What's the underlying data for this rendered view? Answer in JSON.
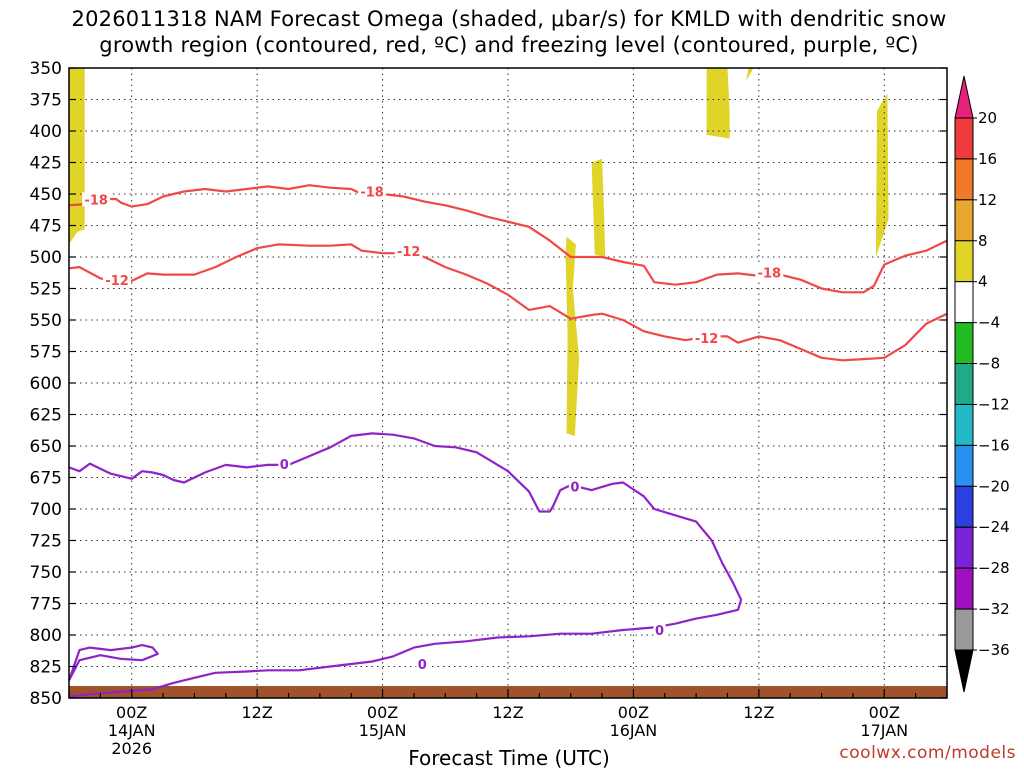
{
  "title_line1": "2026011318 NAM Forecast Omega (shaded, μbar/s) for KMLD with dendritic snow",
  "title_line2": "growth region (contoured, red, ºC) and freezing level (contoured, purple, ºC)",
  "xaxis_title": "Forecast Time (UTC)",
  "credit": "coolwx.com/models",
  "chart_data": {
    "type": "line",
    "title": "2026011318 NAM Forecast Omega (shaded, μbar/s) for KMLD with dendritic snow growth region (contoured, red, ºC) and freezing level (contoured, purple, ºC)",
    "xlabel": "Forecast Time (UTC)",
    "ylabel": "",
    "x_unit": "forecast hour",
    "xlim": [
      0,
      84
    ],
    "ylim": [
      350,
      850
    ],
    "y_inverted": true,
    "grid": true,
    "y_ticks": [
      350,
      375,
      400,
      425,
      450,
      475,
      500,
      525,
      550,
      575,
      600,
      625,
      650,
      675,
      700,
      725,
      750,
      775,
      800,
      825,
      850
    ],
    "x_ticks": [
      {
        "hour": 6,
        "lines": [
          "00Z",
          "14JAN",
          "2026"
        ]
      },
      {
        "hour": 18,
        "lines": [
          "12Z"
        ]
      },
      {
        "hour": 30,
        "lines": [
          "00Z",
          "15JAN"
        ]
      },
      {
        "hour": 42,
        "lines": [
          "12Z"
        ]
      },
      {
        "hour": 54,
        "lines": [
          "00Z",
          "16JAN"
        ]
      },
      {
        "hour": 66,
        "lines": [
          "12Z"
        ]
      },
      {
        "hour": 78,
        "lines": [
          "00Z",
          "17JAN"
        ]
      }
    ],
    "colorbar": {
      "labels": [
        "20",
        "16",
        "12",
        "8",
        "4",
        "−4",
        "−8",
        "−12",
        "−16",
        "−20",
        "−24",
        "−28",
        "−32",
        "−36"
      ],
      "colors": [
        "#e8207e",
        "#f03c3c",
        "#f07a28",
        "#e8a830",
        "#e0d428",
        "#ffffff",
        "#22bb22",
        "#22aa88",
        "#22b8c8",
        "#2a90f0",
        "#2a40e0",
        "#7a22d8",
        "#a010c0",
        "#9a9a9a",
        "#000000"
      ]
    },
    "series": [
      {
        "name": "-18",
        "color": "#f04848",
        "points": [
          [
            0,
            459
          ],
          [
            1.5,
            458
          ],
          [
            3,
            454
          ],
          [
            4.5,
            454
          ],
          [
            5,
            457
          ],
          [
            6,
            460
          ],
          [
            7.5,
            458
          ],
          [
            9,
            452
          ],
          [
            11,
            448
          ],
          [
            13,
            446
          ],
          [
            15,
            448
          ],
          [
            17,
            446
          ],
          [
            19,
            444
          ],
          [
            21,
            446
          ],
          [
            23,
            443
          ],
          [
            25,
            445
          ],
          [
            27,
            446
          ],
          [
            28,
            450
          ],
          [
            30,
            450
          ],
          [
            32,
            452
          ],
          [
            34,
            456
          ],
          [
            36,
            459
          ],
          [
            38,
            463
          ],
          [
            40,
            468
          ],
          [
            42,
            472
          ],
          [
            44,
            476
          ],
          [
            46,
            487
          ],
          [
            48,
            500
          ],
          [
            51,
            500
          ],
          [
            53,
            504
          ],
          [
            55,
            507
          ],
          [
            56,
            520
          ],
          [
            58,
            522
          ],
          [
            60,
            520
          ],
          [
            62,
            514
          ],
          [
            64,
            513
          ],
          [
            66,
            515
          ],
          [
            68,
            514
          ],
          [
            70,
            518
          ],
          [
            72,
            525
          ],
          [
            74,
            528
          ],
          [
            76,
            528
          ],
          [
            77,
            523
          ],
          [
            78,
            506
          ],
          [
            80,
            499
          ],
          [
            82,
            495
          ],
          [
            84,
            487
          ]
        ]
      },
      {
        "name": "-12",
        "color": "#f04848",
        "points": [
          [
            0,
            509
          ],
          [
            1,
            508
          ],
          [
            3,
            517
          ],
          [
            5,
            520
          ],
          [
            6,
            519
          ],
          [
            7.5,
            513
          ],
          [
            9,
            514
          ],
          [
            12,
            514
          ],
          [
            14,
            508
          ],
          [
            16,
            500
          ],
          [
            18,
            493
          ],
          [
            20,
            490
          ],
          [
            23,
            491
          ],
          [
            25,
            491
          ],
          [
            27,
            490
          ],
          [
            28,
            495
          ],
          [
            30,
            497
          ],
          [
            32,
            497
          ],
          [
            34,
            500
          ],
          [
            36,
            508
          ],
          [
            38,
            514
          ],
          [
            40,
            521
          ],
          [
            42,
            530
          ],
          [
            44,
            542
          ],
          [
            46,
            539
          ],
          [
            48,
            549
          ],
          [
            50,
            546
          ],
          [
            51,
            545
          ],
          [
            53,
            550
          ],
          [
            55,
            559
          ],
          [
            57,
            563
          ],
          [
            59,
            566
          ],
          [
            61,
            563
          ],
          [
            63,
            563
          ],
          [
            64,
            568
          ],
          [
            66,
            563
          ],
          [
            68,
            566
          ],
          [
            70,
            573
          ],
          [
            72,
            580
          ],
          [
            74,
            582
          ],
          [
            76,
            581
          ],
          [
            78,
            580
          ],
          [
            80,
            570
          ],
          [
            82,
            553
          ],
          [
            84,
            545
          ]
        ]
      },
      {
        "name": "0",
        "color": "#8e24c8",
        "points": [
          [
            0,
            667
          ],
          [
            1,
            670
          ],
          [
            2,
            664
          ],
          [
            3,
            668
          ],
          [
            4,
            672
          ],
          [
            5,
            674
          ],
          [
            6,
            676
          ],
          [
            7,
            670
          ],
          [
            8,
            671
          ],
          [
            9,
            673
          ],
          [
            10,
            677
          ],
          [
            11,
            679
          ],
          [
            13,
            671
          ],
          [
            15,
            665
          ],
          [
            17,
            667
          ],
          [
            19,
            665
          ],
          [
            21,
            665
          ],
          [
            23,
            658
          ],
          [
            25,
            651
          ],
          [
            27,
            642
          ],
          [
            29,
            640
          ],
          [
            31,
            641
          ],
          [
            33,
            644
          ],
          [
            35,
            650
          ],
          [
            37,
            651
          ],
          [
            39,
            655
          ],
          [
            40,
            660
          ],
          [
            42,
            670
          ],
          [
            44,
            686
          ],
          [
            45,
            702
          ],
          [
            46,
            702
          ],
          [
            46.3,
            698
          ],
          [
            47,
            685
          ],
          [
            48,
            681
          ],
          [
            50,
            685
          ],
          [
            52,
            680
          ],
          [
            53,
            679
          ],
          [
            55,
            690
          ],
          [
            56,
            700
          ],
          [
            58,
            705
          ],
          [
            60,
            710
          ],
          [
            61.5,
            725
          ],
          [
            62.5,
            743
          ],
          [
            63.5,
            758
          ],
          [
            64.3,
            772
          ],
          [
            64,
            780
          ],
          [
            62,
            784
          ],
          [
            60,
            787
          ],
          [
            58,
            791
          ],
          [
            56,
            794
          ],
          [
            53,
            796
          ],
          [
            50,
            799
          ],
          [
            47,
            799
          ],
          [
            44,
            801
          ],
          [
            41,
            802
          ],
          [
            38,
            805
          ],
          [
            35,
            807
          ],
          [
            33,
            810
          ],
          [
            31,
            817
          ],
          [
            29,
            821
          ],
          [
            27,
            823
          ],
          [
            25,
            825
          ],
          [
            22,
            828
          ],
          [
            19,
            828
          ],
          [
            17,
            829
          ],
          [
            14,
            830
          ],
          [
            12,
            834
          ],
          [
            10,
            838
          ],
          [
            8,
            843
          ],
          [
            5,
            845
          ],
          [
            2,
            847
          ],
          [
            0,
            849
          ]
        ]
      },
      {
        "name": "0 (low-level)",
        "color": "#8e24c8",
        "points": [
          [
            0,
            836
          ],
          [
            1,
            812
          ],
          [
            2,
            810
          ],
          [
            4,
            812
          ],
          [
            6,
            810
          ],
          [
            7,
            808
          ],
          [
            8,
            810
          ],
          [
            8.5,
            815
          ],
          [
            7,
            820
          ],
          [
            5,
            819
          ],
          [
            3,
            816
          ],
          [
            1,
            820
          ],
          [
            0,
            836
          ]
        ]
      }
    ],
    "shaded_regions": [
      {
        "name": "omega 4-8 (yellow)",
        "color": "#e0d428",
        "polygon": [
          [
            0,
            350
          ],
          [
            1.5,
            350
          ],
          [
            1.5,
            478
          ],
          [
            0.8,
            480
          ],
          [
            0,
            490
          ]
        ]
      },
      {
        "name": "omega 4-8 (yellow)",
        "color": "#e0d428",
        "polygon": [
          [
            47.6,
            484
          ],
          [
            48.5,
            490
          ],
          [
            48.2,
            525
          ],
          [
            48.8,
            580
          ],
          [
            48.4,
            642
          ],
          [
            47.6,
            640
          ],
          [
            47.7,
            560
          ],
          [
            47.5,
            500
          ]
        ]
      },
      {
        "name": "omega 4-8 (yellow)",
        "color": "#e0d428",
        "polygon": [
          [
            50,
            425
          ],
          [
            51,
            422
          ],
          [
            51.2,
            470
          ],
          [
            51.3,
            500
          ],
          [
            50.3,
            498
          ]
        ]
      },
      {
        "name": "omega 4-8 (yellow)",
        "color": "#e0d428",
        "polygon": [
          [
            61,
            350
          ],
          [
            63,
            350
          ],
          [
            63.2,
            384
          ],
          [
            63.2,
            406
          ],
          [
            61,
            403
          ]
        ]
      },
      {
        "name": "omega 4-8 (yellow)",
        "color": "#e0d428",
        "polygon": [
          [
            65,
            350
          ],
          [
            65.5,
            350
          ],
          [
            64.8,
            360
          ]
        ]
      },
      {
        "name": "omega 4-8 (yellow)",
        "color": "#e0d428",
        "polygon": [
          [
            77.3,
            384
          ],
          [
            78.3,
            370
          ],
          [
            78.4,
            470
          ],
          [
            77.2,
            500
          ]
        ]
      }
    ],
    "contour_labels": [
      {
        "text": "-18",
        "x": 2.6,
        "y": 455,
        "color": "#f04848"
      },
      {
        "text": "-18",
        "x": 29,
        "y": 449,
        "color": "#f04848"
      },
      {
        "text": "-18",
        "x": 67,
        "y": 513,
        "color": "#f04848"
      },
      {
        "text": "-12",
        "x": 4.6,
        "y": 519,
        "color": "#f04848"
      },
      {
        "text": "-12",
        "x": 32.5,
        "y": 496,
        "color": "#f04848"
      },
      {
        "text": "-12",
        "x": 61,
        "y": 565,
        "color": "#f04848"
      },
      {
        "text": "0",
        "x": 20.6,
        "y": 665,
        "color": "#8e24c8"
      },
      {
        "text": "0",
        "x": 48.4,
        "y": 683,
        "color": "#8e24c8"
      },
      {
        "text": "0",
        "x": 56.5,
        "y": 797,
        "color": "#8e24c8"
      },
      {
        "text": "0",
        "x": 33.8,
        "y": 824,
        "color": "#8e24c8"
      }
    ]
  }
}
